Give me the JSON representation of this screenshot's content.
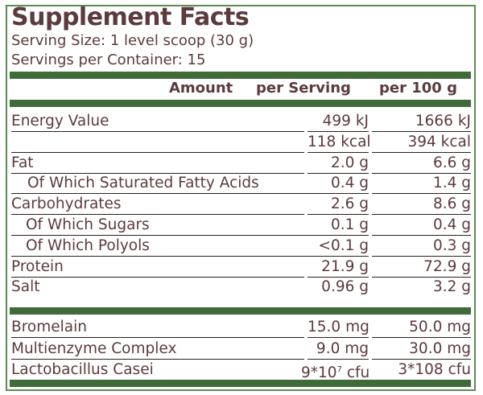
{
  "title": "Supplement Facts",
  "serving_size": "Serving Size: 1 level scoop (30 g)",
  "servings_per_container": "Servings per Container: 15",
  "header": {
    "amount": "Amount",
    "per_serving": "per Serving",
    "per_100g": "per 100 g"
  },
  "colors": {
    "text": "#5b3b3c",
    "bar": "#3f6b38",
    "border": "#5d8a55"
  },
  "nutrients": [
    {
      "name": "Energy Value",
      "per_serving": "499 kJ",
      "per_100g": "1666 kJ"
    },
    {
      "name": "",
      "per_serving": "118 kcal",
      "per_100g": "394 kcal"
    },
    {
      "name": "Fat",
      "per_serving": "2.0 g",
      "per_100g": "6.6 g"
    },
    {
      "name": "Of Which Saturated Fatty Acids",
      "per_serving": "0.4 g",
      "per_100g": "1.4 g"
    },
    {
      "name": "Carbohydrates",
      "per_serving": "2.6 g",
      "per_100g": "8.6 g"
    },
    {
      "name": "Of Which Sugars",
      "per_serving": "0.1 g",
      "per_100g": "0.4 g"
    },
    {
      "name": "Of Which Polyols",
      "per_serving": "<0.1 g",
      "per_100g": "0.3 g"
    },
    {
      "name": "Protein",
      "per_serving": "21.9 g",
      "per_100g": "72.9 g"
    },
    {
      "name": "Salt",
      "per_serving": "0.96 g",
      "per_100g": "3.2 g"
    }
  ],
  "others": [
    {
      "name": "Bromelain",
      "per_serving": "15.0 mg",
      "per_100g": "50.0 mg"
    },
    {
      "name": "Multienzyme Complex",
      "per_serving": "9.0 mg",
      "per_100g": "30.0 mg"
    },
    {
      "name": "Lactobacillus Casei",
      "per_serving_base": "9*10",
      "per_serving_exp": "7",
      "per_serving_unit": " cfu",
      "per_100g": "3*108 cfu"
    }
  ]
}
